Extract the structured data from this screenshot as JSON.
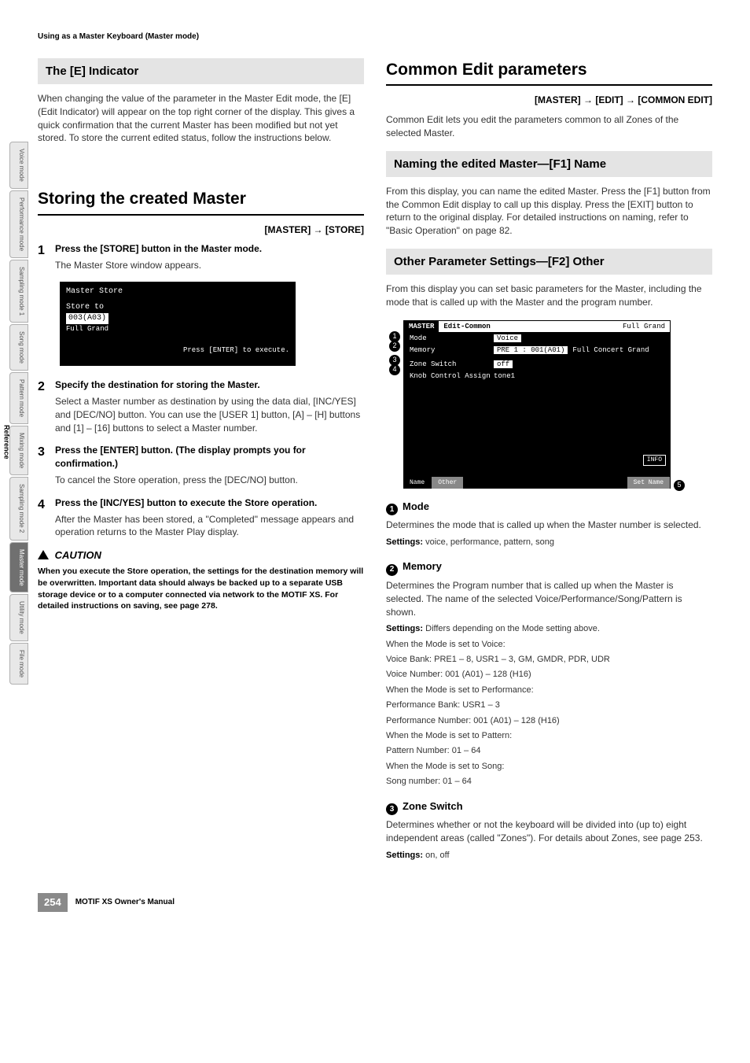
{
  "running_header": "Using as a Master Keyboard (Master mode)",
  "side_tabs": [
    {
      "label": "Voice mode",
      "active": false
    },
    {
      "label": "Performance mode",
      "active": false
    },
    {
      "label": "Sampling mode 1",
      "active": false
    },
    {
      "label": "Song mode",
      "active": false
    },
    {
      "label": "Pattern mode",
      "active": false
    },
    {
      "label": "Mixing mode",
      "active": false
    },
    {
      "label": "Sampling mode 2",
      "active": false
    },
    {
      "label": "Master mode",
      "active": true
    },
    {
      "label": "Utility mode",
      "active": false
    },
    {
      "label": "File mode",
      "active": false
    }
  ],
  "side_section": "Reference",
  "left": {
    "e_indicator_title": "The [E] Indicator",
    "e_indicator_body": "When changing the value of the parameter in the Master Edit mode, the [E] (Edit Indicator) will appear on the top right corner of the display. This gives a quick confirmation that the current Master has been modified but not yet stored. To store the current edited status, follow the instructions below.",
    "storing_title": "Storing the created Master",
    "storing_path": "[MASTER] → [STORE]",
    "steps": [
      {
        "num": "1",
        "title": "Press the [STORE] button in the Master mode.",
        "desc": "The Master Store window appears."
      },
      {
        "num": "2",
        "title": "Specify the destination for storing the Master.",
        "desc": "Select a Master number as destination by using the data dial, [INC/YES] and [DEC/NO] button. You can use the [USER 1] button, [A] – [H] buttons and [1] – [16] buttons to select a Master number."
      },
      {
        "num": "3",
        "title": "Press the [ENTER] button. (The display prompts you for confirmation.)",
        "desc": "To cancel the Store operation, press the [DEC/NO] button."
      },
      {
        "num": "4",
        "title": "Press the [INC/YES] button to execute the Store operation.",
        "desc": "After the Master has been stored, a \"Completed\" message appears and operation returns to the Master Play display."
      }
    ],
    "screenshot1": {
      "title": "Master Store",
      "line1": "Store to",
      "line2": "003(A03)",
      "line3": "Full Grand",
      "prompt": "Press [ENTER] to execute."
    },
    "caution_label": "CAUTION",
    "caution_text": "When you execute the Store operation, the settings for the destination memory will be overwritten. Important data should always be backed up to a separate USB storage device or to a computer connected via network to the MOTIF XS. For detailed instructions on saving, see page 278."
  },
  "right": {
    "common_title": "Common Edit parameters",
    "common_path": "[MASTER] → [EDIT] → [COMMON EDIT]",
    "common_body": "Common Edit lets you edit the parameters common to all Zones of the selected Master.",
    "naming_title": "Naming the edited Master—[F1] Name",
    "naming_body": "From this display, you can name the edited Master. Press the [F1] button from the Common Edit display to call up this display. Press the [EXIT] button to return to the original display. For detailed instructions on naming, refer to \"Basic Operation\" on page 82.",
    "other_title": "Other Parameter Settings—[F2] Other",
    "other_body": "From this display you can set basic parameters for the Master, including the mode that is called up with the Master and the program number.",
    "screenshot2": {
      "top_tab1": "MASTER",
      "top_tab2": "Edit-Common",
      "top_right": "Full Grand",
      "rows": [
        {
          "label": "Mode",
          "val": "Voice",
          "inv": true
        },
        {
          "label": "Memory",
          "val": "PRE 1 : 001(A01)",
          "extra": "Full Concert Grand",
          "inv": true
        },
        {
          "label": "Zone Switch",
          "val": "off",
          "inv": true
        },
        {
          "label": "Knob Control Assign",
          "val": "tone1",
          "inv": false
        }
      ],
      "info_label": "INFO",
      "bottom_tabs": [
        "Name",
        "Other"
      ],
      "bottom_right": "Set Name"
    },
    "params": [
      {
        "num": "1",
        "name": "Mode",
        "desc": "Determines the mode that is called up when the Master number is selected.",
        "settings": "voice, performance, pattern, song"
      },
      {
        "num": "2",
        "name": "Memory",
        "desc": "Determines the Program number that is called up when the Master is selected. The name of the selected Voice/Performance/Song/Pattern is shown.",
        "settings": "Differs depending on the Mode setting above.",
        "extras": [
          "When the Mode is set to Voice:",
          "Voice Bank: PRE1 – 8, USR1 – 3, GM, GMDR, PDR, UDR",
          "Voice Number: 001 (A01) – 128 (H16)",
          "When the Mode is set to Performance:",
          "Performance Bank: USR1 – 3",
          "Performance Number: 001 (A01) – 128 (H16)",
          "When the Mode is set to Pattern:",
          "Pattern Number: 01 – 64",
          "When the Mode is set to Song:",
          "Song number: 01 – 64"
        ]
      },
      {
        "num": "3",
        "name": "Zone Switch",
        "desc": "Determines whether or not the keyboard will be divided into (up to) eight independent areas (called \"Zones\"). For details about Zones, see page 253.",
        "settings": "on, off"
      }
    ]
  },
  "footer": {
    "page_number": "254",
    "text": "MOTIF XS Owner's Manual"
  }
}
